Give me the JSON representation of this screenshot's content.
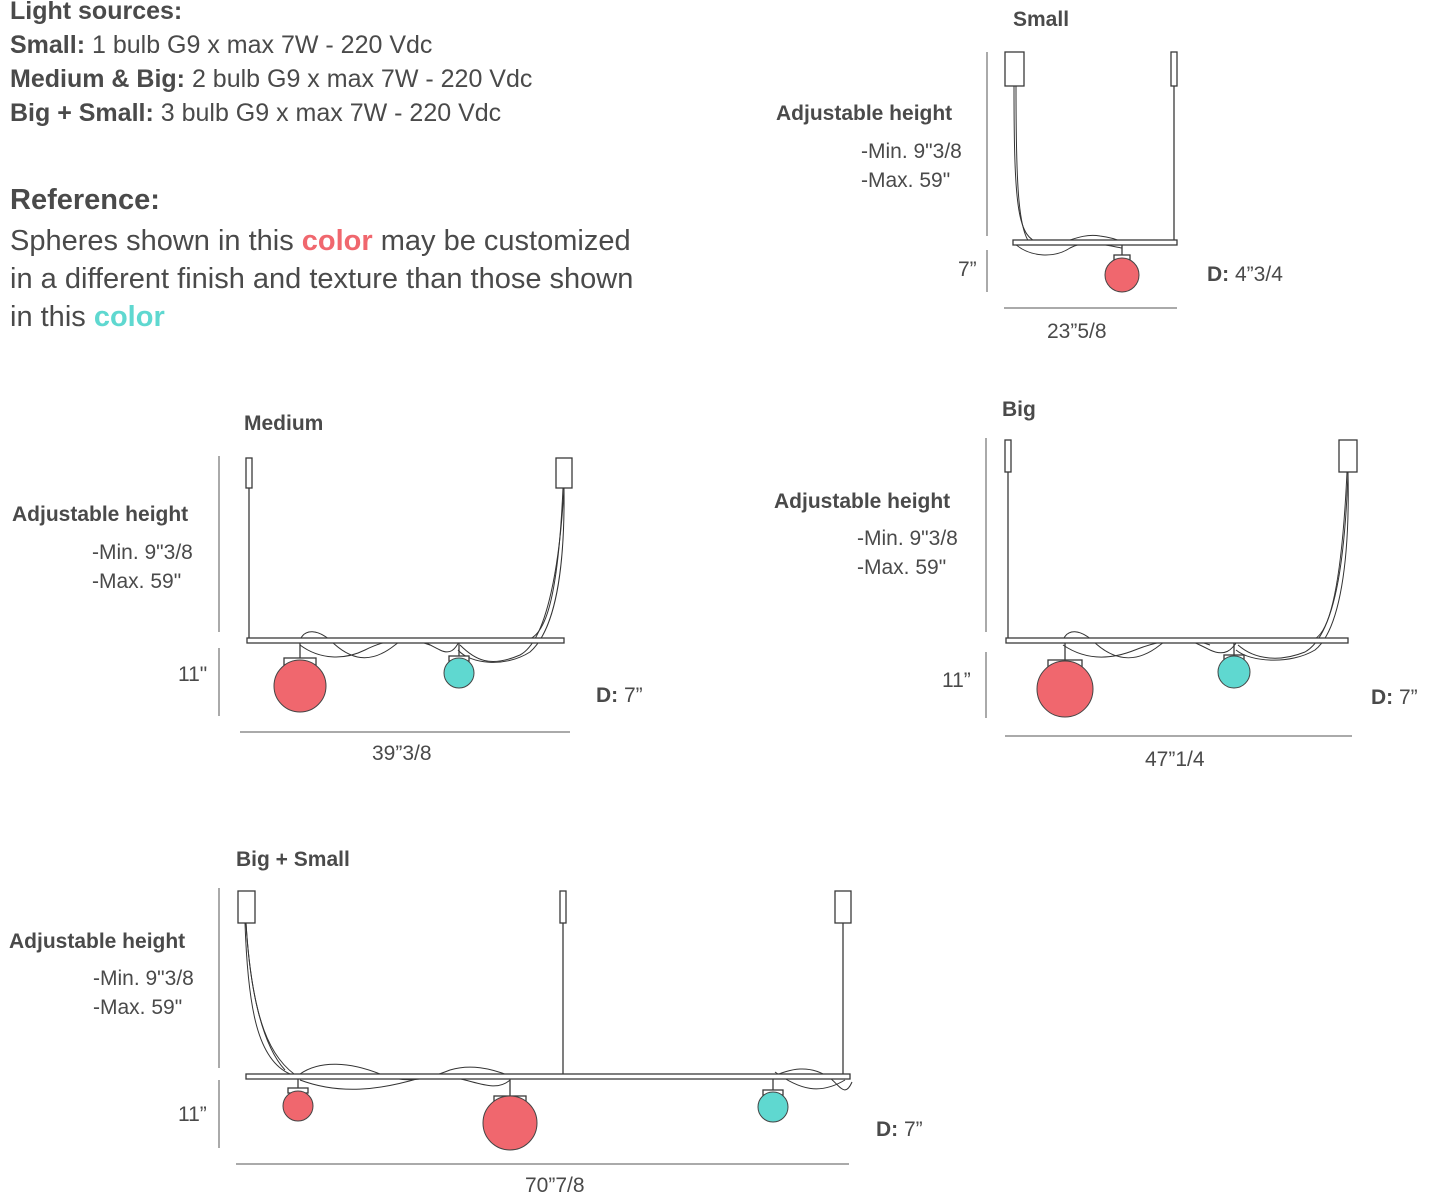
{
  "light_sources": {
    "heading": "Light sources:",
    "rows": [
      {
        "label": "Small:",
        "value": " 1 bulb G9 x max 7W - 220 Vdc"
      },
      {
        "label": "Medium & Big:",
        "value": " 2 bulb G9 x max 7W - 220 Vdc"
      },
      {
        "label": "Big + Small:",
        "value": " 3 bulb G9 x max 7W - 220 Vdc"
      }
    ]
  },
  "reference": {
    "heading": "Reference:",
    "text_1": "Spheres shown in this ",
    "color_word_1": "color",
    "text_2": " may be customized in a different finish and texture than those shown in this ",
    "color_word_2": "color"
  },
  "colors": {
    "sphere_red": "#f0676e",
    "sphere_teal": "#5fd8d0",
    "line": "#3a3a3a",
    "text": "#4a4a4a"
  },
  "diagrams": {
    "small": {
      "title": "Small",
      "adjustable_height": "Adjustable height",
      "min": "-Min. 9\"3/8",
      "max": "-Max. 59\"",
      "drop": "7”",
      "depth_label": "D:",
      "depth_value": " 4”3/4",
      "width": "23”5/8"
    },
    "medium": {
      "title": "Medium",
      "adjustable_height": "Adjustable height",
      "min": "-Min. 9\"3/8",
      "max": "-Max. 59\"",
      "drop": "11\"",
      "depth_label": "D:",
      "depth_value": " 7”",
      "width": "39”3/8"
    },
    "big": {
      "title": "Big",
      "adjustable_height": "Adjustable height",
      "min": "-Min. 9\"3/8",
      "max": "-Max. 59\"",
      "drop": "11”",
      "depth_label": "D:",
      "depth_value": " 7”",
      "width": "47”1/4"
    },
    "big_small": {
      "title": "Big + Small",
      "adjustable_height": "Adjustable height",
      "min": "-Min. 9\"3/8",
      "max": "-Max. 59\"",
      "drop": "11”",
      "depth_label": "D:",
      "depth_value": " 7”",
      "width": "70”7/8"
    }
  }
}
